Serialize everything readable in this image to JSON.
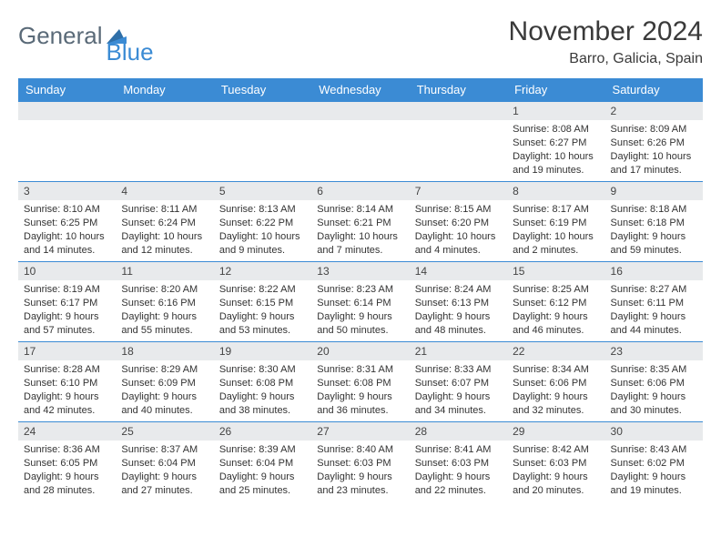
{
  "brand": {
    "part1": "General",
    "part2": "Blue"
  },
  "title": "November 2024",
  "location": "Barro, Galicia, Spain",
  "colors": {
    "header_bg": "#3b8bd4",
    "daynum_bg": "#e8eaec",
    "border": "#3b8bd4",
    "text": "#333",
    "brand_gray": "#5a6a78",
    "brand_blue": "#3b8bd4"
  },
  "dayHeaders": [
    "Sunday",
    "Monday",
    "Tuesday",
    "Wednesday",
    "Thursday",
    "Friday",
    "Saturday"
  ],
  "weeks": [
    [
      null,
      null,
      null,
      null,
      null,
      {
        "n": "1",
        "sr": "Sunrise: 8:08 AM",
        "ss": "Sunset: 6:27 PM",
        "d1": "Daylight: 10 hours",
        "d2": "and 19 minutes."
      },
      {
        "n": "2",
        "sr": "Sunrise: 8:09 AM",
        "ss": "Sunset: 6:26 PM",
        "d1": "Daylight: 10 hours",
        "d2": "and 17 minutes."
      }
    ],
    [
      {
        "n": "3",
        "sr": "Sunrise: 8:10 AM",
        "ss": "Sunset: 6:25 PM",
        "d1": "Daylight: 10 hours",
        "d2": "and 14 minutes."
      },
      {
        "n": "4",
        "sr": "Sunrise: 8:11 AM",
        "ss": "Sunset: 6:24 PM",
        "d1": "Daylight: 10 hours",
        "d2": "and 12 minutes."
      },
      {
        "n": "5",
        "sr": "Sunrise: 8:13 AM",
        "ss": "Sunset: 6:22 PM",
        "d1": "Daylight: 10 hours",
        "d2": "and 9 minutes."
      },
      {
        "n": "6",
        "sr": "Sunrise: 8:14 AM",
        "ss": "Sunset: 6:21 PM",
        "d1": "Daylight: 10 hours",
        "d2": "and 7 minutes."
      },
      {
        "n": "7",
        "sr": "Sunrise: 8:15 AM",
        "ss": "Sunset: 6:20 PM",
        "d1": "Daylight: 10 hours",
        "d2": "and 4 minutes."
      },
      {
        "n": "8",
        "sr": "Sunrise: 8:17 AM",
        "ss": "Sunset: 6:19 PM",
        "d1": "Daylight: 10 hours",
        "d2": "and 2 minutes."
      },
      {
        "n": "9",
        "sr": "Sunrise: 8:18 AM",
        "ss": "Sunset: 6:18 PM",
        "d1": "Daylight: 9 hours",
        "d2": "and 59 minutes."
      }
    ],
    [
      {
        "n": "10",
        "sr": "Sunrise: 8:19 AM",
        "ss": "Sunset: 6:17 PM",
        "d1": "Daylight: 9 hours",
        "d2": "and 57 minutes."
      },
      {
        "n": "11",
        "sr": "Sunrise: 8:20 AM",
        "ss": "Sunset: 6:16 PM",
        "d1": "Daylight: 9 hours",
        "d2": "and 55 minutes."
      },
      {
        "n": "12",
        "sr": "Sunrise: 8:22 AM",
        "ss": "Sunset: 6:15 PM",
        "d1": "Daylight: 9 hours",
        "d2": "and 53 minutes."
      },
      {
        "n": "13",
        "sr": "Sunrise: 8:23 AM",
        "ss": "Sunset: 6:14 PM",
        "d1": "Daylight: 9 hours",
        "d2": "and 50 minutes."
      },
      {
        "n": "14",
        "sr": "Sunrise: 8:24 AM",
        "ss": "Sunset: 6:13 PM",
        "d1": "Daylight: 9 hours",
        "d2": "and 48 minutes."
      },
      {
        "n": "15",
        "sr": "Sunrise: 8:25 AM",
        "ss": "Sunset: 6:12 PM",
        "d1": "Daylight: 9 hours",
        "d2": "and 46 minutes."
      },
      {
        "n": "16",
        "sr": "Sunrise: 8:27 AM",
        "ss": "Sunset: 6:11 PM",
        "d1": "Daylight: 9 hours",
        "d2": "and 44 minutes."
      }
    ],
    [
      {
        "n": "17",
        "sr": "Sunrise: 8:28 AM",
        "ss": "Sunset: 6:10 PM",
        "d1": "Daylight: 9 hours",
        "d2": "and 42 minutes."
      },
      {
        "n": "18",
        "sr": "Sunrise: 8:29 AM",
        "ss": "Sunset: 6:09 PM",
        "d1": "Daylight: 9 hours",
        "d2": "and 40 minutes."
      },
      {
        "n": "19",
        "sr": "Sunrise: 8:30 AM",
        "ss": "Sunset: 6:08 PM",
        "d1": "Daylight: 9 hours",
        "d2": "and 38 minutes."
      },
      {
        "n": "20",
        "sr": "Sunrise: 8:31 AM",
        "ss": "Sunset: 6:08 PM",
        "d1": "Daylight: 9 hours",
        "d2": "and 36 minutes."
      },
      {
        "n": "21",
        "sr": "Sunrise: 8:33 AM",
        "ss": "Sunset: 6:07 PM",
        "d1": "Daylight: 9 hours",
        "d2": "and 34 minutes."
      },
      {
        "n": "22",
        "sr": "Sunrise: 8:34 AM",
        "ss": "Sunset: 6:06 PM",
        "d1": "Daylight: 9 hours",
        "d2": "and 32 minutes."
      },
      {
        "n": "23",
        "sr": "Sunrise: 8:35 AM",
        "ss": "Sunset: 6:06 PM",
        "d1": "Daylight: 9 hours",
        "d2": "and 30 minutes."
      }
    ],
    [
      {
        "n": "24",
        "sr": "Sunrise: 8:36 AM",
        "ss": "Sunset: 6:05 PM",
        "d1": "Daylight: 9 hours",
        "d2": "and 28 minutes."
      },
      {
        "n": "25",
        "sr": "Sunrise: 8:37 AM",
        "ss": "Sunset: 6:04 PM",
        "d1": "Daylight: 9 hours",
        "d2": "and 27 minutes."
      },
      {
        "n": "26",
        "sr": "Sunrise: 8:39 AM",
        "ss": "Sunset: 6:04 PM",
        "d1": "Daylight: 9 hours",
        "d2": "and 25 minutes."
      },
      {
        "n": "27",
        "sr": "Sunrise: 8:40 AM",
        "ss": "Sunset: 6:03 PM",
        "d1": "Daylight: 9 hours",
        "d2": "and 23 minutes."
      },
      {
        "n": "28",
        "sr": "Sunrise: 8:41 AM",
        "ss": "Sunset: 6:03 PM",
        "d1": "Daylight: 9 hours",
        "d2": "and 22 minutes."
      },
      {
        "n": "29",
        "sr": "Sunrise: 8:42 AM",
        "ss": "Sunset: 6:03 PM",
        "d1": "Daylight: 9 hours",
        "d2": "and 20 minutes."
      },
      {
        "n": "30",
        "sr": "Sunrise: 8:43 AM",
        "ss": "Sunset: 6:02 PM",
        "d1": "Daylight: 9 hours",
        "d2": "and 19 minutes."
      }
    ]
  ]
}
